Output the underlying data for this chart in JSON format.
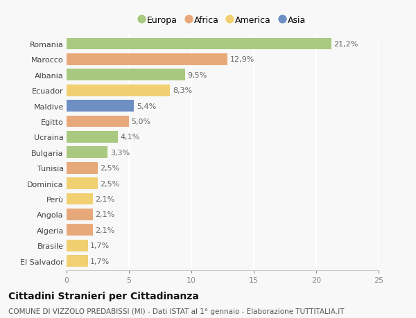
{
  "categories": [
    "Romania",
    "Marocco",
    "Albania",
    "Ecuador",
    "Maldive",
    "Egitto",
    "Ucraina",
    "Bulgaria",
    "Tunisia",
    "Dominica",
    "Perù",
    "Angola",
    "Algeria",
    "Brasile",
    "El Salvador"
  ],
  "values": [
    21.2,
    12.9,
    9.5,
    8.3,
    5.4,
    5.0,
    4.1,
    3.3,
    2.5,
    2.5,
    2.1,
    2.1,
    2.1,
    1.7,
    1.7
  ],
  "labels": [
    "21,2%",
    "12,9%",
    "9,5%",
    "8,3%",
    "5,4%",
    "5,0%",
    "4,1%",
    "3,3%",
    "2,5%",
    "2,5%",
    "2,1%",
    "2,1%",
    "2,1%",
    "1,7%",
    "1,7%"
  ],
  "continents": [
    "Europa",
    "Africa",
    "Europa",
    "America",
    "Asia",
    "Africa",
    "Europa",
    "Europa",
    "Africa",
    "America",
    "America",
    "Africa",
    "Africa",
    "America",
    "America"
  ],
  "colors": {
    "Europa": "#a8c97f",
    "Africa": "#e8a97a",
    "America": "#f0d070",
    "Asia": "#6e8fc4"
  },
  "xlim": [
    0,
    25
  ],
  "xticks": [
    0,
    5,
    10,
    15,
    20,
    25
  ],
  "title": "Cittadini Stranieri per Cittadinanza",
  "subtitle": "COMUNE DI VIZZOLO PREDABISSI (MI) - Dati ISTAT al 1° gennaio - Elaborazione TUTTITALIA.IT",
  "bg_color": "#f8f8f8",
  "grid_color": "#ffffff",
  "bar_height": 0.75,
  "label_fontsize": 8,
  "tick_fontsize": 8,
  "title_fontsize": 10,
  "subtitle_fontsize": 7.5,
  "legend_order": [
    "Europa",
    "Africa",
    "America",
    "Asia"
  ]
}
